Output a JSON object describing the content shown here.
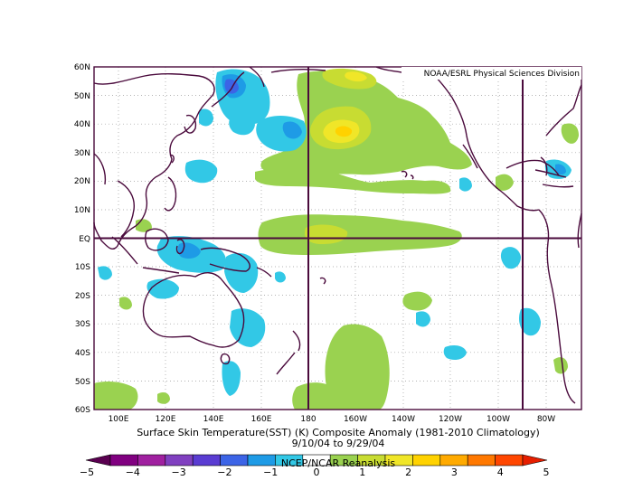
{
  "credit": "NOAA/ESRL Physical Sciences Division",
  "title_line1": "Surface Skin Temperature(SST) (K) Composite Anomaly (1981-2010 Climatology)",
  "title_line2": "9/10/04  to 9/29/04",
  "source": "NCEP/NCAR Reanalysis",
  "lat_labels": [
    "60N",
    "50N",
    "40N",
    "30N",
    "20N",
    "10N",
    "EQ",
    "10S",
    "20S",
    "30S",
    "40S",
    "50S",
    "60S"
  ],
  "lon_labels": [
    "100E",
    "120E",
    "140E",
    "160E",
    "180",
    "160W",
    "140W",
    "120W",
    "100W",
    "80W"
  ],
  "colorbar": {
    "ticks": [
      "−5",
      "−4",
      "−3",
      "−2",
      "−1",
      "0",
      "1",
      "2",
      "3",
      "4",
      "5"
    ],
    "colors": [
      "#5a0050",
      "#800080",
      "#a020a0",
      "#8040c0",
      "#5a3cd2",
      "#3c64e6",
      "#1e9be6",
      "#32c8e6",
      "#ffffff",
      "#9ad250",
      "#c8dc32",
      "#f0e628",
      "#ffd200",
      "#ffaa00",
      "#ff7800",
      "#ff4600",
      "#e61e00"
    ]
  },
  "anomaly_areas": [
    {
      "kind": "warm",
      "sign": "positive",
      "level": "0.5-1"
    },
    {
      "kind": "warm",
      "sign": "positive",
      "level": "1-2"
    },
    {
      "kind": "warm",
      "sign": "positive",
      "level": "2-3"
    },
    {
      "kind": "cool",
      "sign": "negative",
      "level": "0.5-1"
    },
    {
      "kind": "cool",
      "sign": "negative",
      "level": "1-2"
    },
    {
      "kind": "cool",
      "sign": "negative",
      "level": "2-3"
    }
  ]
}
